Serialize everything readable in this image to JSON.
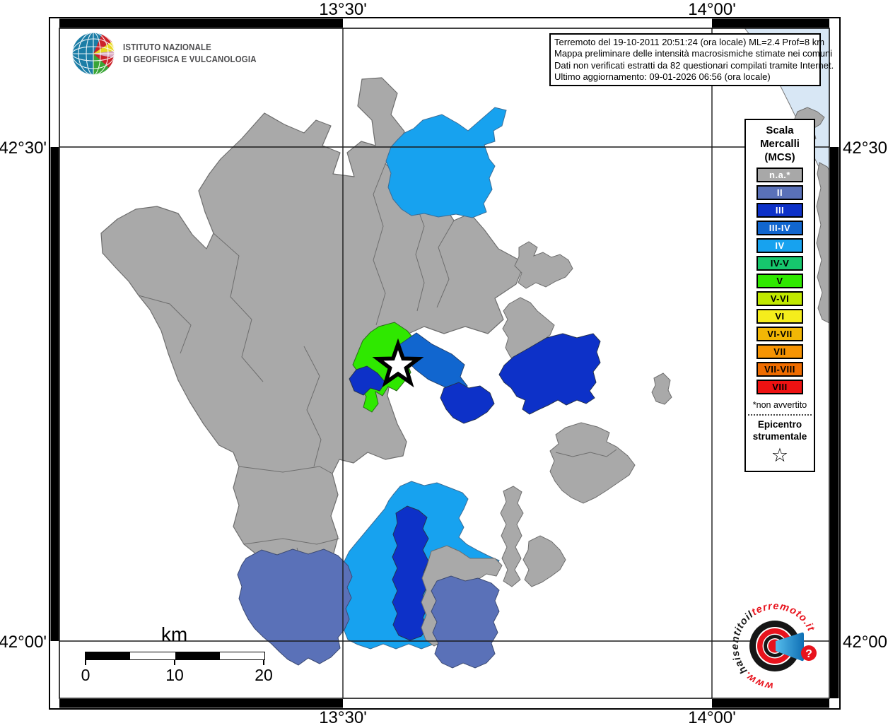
{
  "branding": {
    "institute_line1": "ISTITUTO NAZIONALE",
    "institute_line2": "DI GEOFISICA E VULCANOLOGIA"
  },
  "info_box": {
    "line1": "Terremoto del 19-10-2011 20:51:24 (ora locale) ML=2.4 Prof=8 km",
    "line2": "Mappa preliminare delle intensità macrosismiche stimate nei comuni",
    "line3": "Dati non verificati estratti da 82 questionari compilati tramite Internet.",
    "line4": "Ultimo aggiornamento: 09-01-2026 06:56 (ora locale)"
  },
  "axes": {
    "lon_left": "13°30'",
    "lon_right": "14°00'",
    "lat_top": "42°30'",
    "lat_bottom": "42°00'"
  },
  "legend": {
    "title_line1": "Scala",
    "title_line2": "Mercalli",
    "title_line3": "(MCS)",
    "items": [
      {
        "label": "n.a.*",
        "color": "#a8a8a8",
        "text_color": "#ffffff"
      },
      {
        "label": "II",
        "color": "#5a71b8",
        "text_color": "#ffffff"
      },
      {
        "label": "III",
        "color": "#0d31c8",
        "text_color": "#ffffff"
      },
      {
        "label": "III-IV",
        "color": "#1166cf",
        "text_color": "#ffffff"
      },
      {
        "label": "IV",
        "color": "#17a2ef",
        "text_color": "#ffffff"
      },
      {
        "label": "IV-V",
        "color": "#16c76d",
        "text_color": "#000000"
      },
      {
        "label": "V",
        "color": "#2fe800",
        "text_color": "#000000"
      },
      {
        "label": "V-VI",
        "color": "#c0e800",
        "text_color": "#000000"
      },
      {
        "label": "VI",
        "color": "#f5ed1c",
        "text_color": "#000000"
      },
      {
        "label": "VI-VII",
        "color": "#f2b705",
        "text_color": "#000000"
      },
      {
        "label": "VII",
        "color": "#f79402",
        "text_color": "#000000"
      },
      {
        "label": "VII-VIII",
        "color": "#ef6c00",
        "text_color": "#000000"
      },
      {
        "label": "VIII",
        "color": "#ed1212",
        "text_color": "#000000"
      }
    ],
    "footnote": "*non avvertito",
    "epicenter_label_line1": "Epicentro",
    "epicenter_label_line2": "strumentale",
    "epicenter_symbol": "☆"
  },
  "scale_bar": {
    "unit": "km",
    "ticks": [
      "0",
      "10",
      "20"
    ]
  },
  "watermark": {
    "www": "www.",
    "black_text": "haisentitoil",
    "red_text": "terremoto.it",
    "question_mark": "?"
  },
  "map": {
    "sea_color": "#d8e7f5",
    "not_felt_color": "#a9a9a9"
  }
}
